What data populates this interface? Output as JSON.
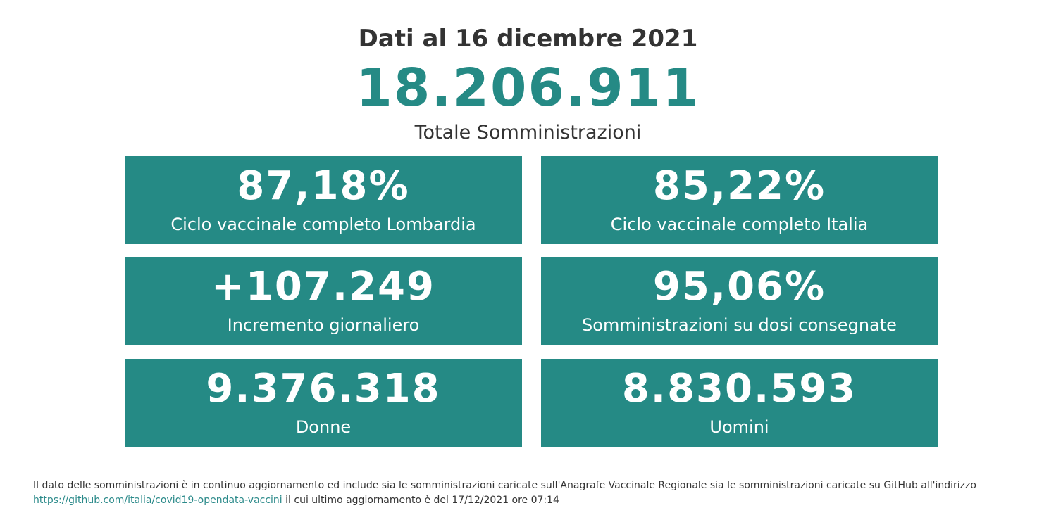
{
  "header": {
    "date_title": "Dati al 16 dicembre 2021",
    "total_value": "18.206.911",
    "total_label": "Totale Somministrazioni"
  },
  "tiles": [
    {
      "value": "87,18%",
      "label": "Ciclo vaccinale completo Lombardia"
    },
    {
      "value": "85,22%",
      "label": "Ciclo vaccinale completo Italia"
    },
    {
      "value": "+107.249",
      "label": "Incremento giornaliero"
    },
    {
      "value": "95,06%",
      "label": "Somministrazioni su dosi consegnate"
    },
    {
      "value": "9.376.318",
      "label": "Donne"
    },
    {
      "value": "8.830.593",
      "label": "Uomini"
    }
  ],
  "footer": {
    "text_before": "Il dato delle somministrazioni è in continuo aggiornamento ed include sia le somministrazioni caricate sull'Anagrafe Vaccinale Regionale sia le somministrazioni caricate su GitHub all'indirizzo",
    "link_text": "https://github.com/italia/covid19-opendata-vaccini",
    "text_after": " il cui ultimo aggiornamento è del 17/12/2021 ore 07:14"
  },
  "colors": {
    "accent": "#258a85",
    "text": "#333333",
    "link": "#2b8a8a"
  }
}
